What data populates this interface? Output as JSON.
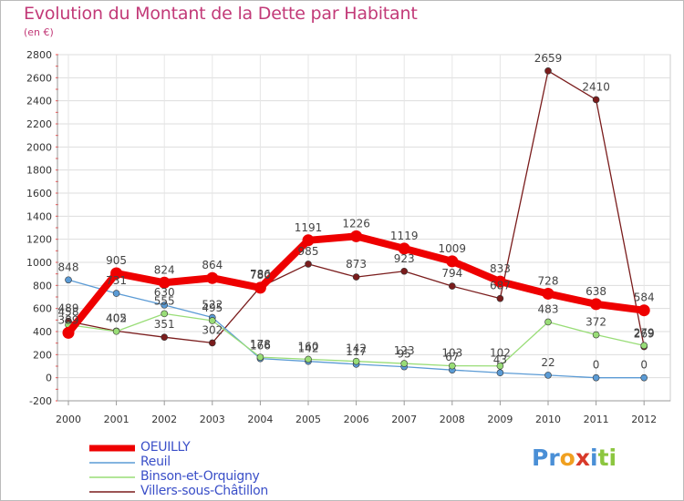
{
  "header": {
    "title": "Evolution du Montant de la Dette par Habitant",
    "subtitle": "(en €)"
  },
  "logo": {
    "parts": [
      "Pr",
      "o",
      "x",
      "i",
      "ti"
    ],
    "colors": [
      "#4a8fd6",
      "#f0a020",
      "#d83a2a",
      "#4a8fd6",
      "#8cc63f"
    ]
  },
  "chart_data": {
    "type": "line",
    "x": [
      "2000",
      "2001",
      "2002",
      "2003",
      "2004",
      "2005",
      "2006",
      "2007",
      "2008",
      "2009",
      "2010",
      "2011",
      "2012"
    ],
    "ylim": [
      -200,
      2800
    ],
    "yticks": [
      "-200",
      "0",
      "200",
      "400",
      "600",
      "800",
      "1000",
      "1200",
      "1400",
      "1600",
      "1800",
      "2000",
      "2200",
      "2400",
      "2600",
      "2800"
    ],
    "grid": true,
    "legend_placement": "bottom-left",
    "series": [
      {
        "name": "Villers-sous-Châtillon",
        "color": "#7a1c1c",
        "values": [
          489,
          405,
          351,
          302,
          786,
          985,
          873,
          923,
          794,
          687,
          2659,
          2410,
          269
        ],
        "labels": [
          "489",
          "405",
          "351",
          "302",
          "786",
          "985",
          "873",
          "923",
          "794",
          "687",
          "2659",
          "2410",
          "269"
        ]
      },
      {
        "name": "Reuil",
        "color": "#5b9bd5",
        "values": [
          848,
          731,
          630,
          522,
          166,
          142,
          117,
          95,
          67,
          43,
          22,
          0,
          0
        ],
        "labels": [
          "848",
          "731",
          "630",
          "522",
          "166",
          "142",
          "117",
          "95",
          "67",
          "43",
          "22",
          "0",
          "0"
        ]
      },
      {
        "name": "Binson-et-Orquigny",
        "color": "#99dd77",
        "values": [
          458,
          402,
          555,
          495,
          178,
          160,
          142,
          123,
          103,
          102,
          483,
          372,
          279
        ],
        "labels": [
          "458",
          "402",
          "555",
          "495",
          "178",
          "160",
          "142",
          "123",
          "103",
          "102",
          "483",
          "372",
          "279"
        ]
      },
      {
        "name": "OEUILLY",
        "color": "#ee0000",
        "values": [
          389,
          905,
          824,
          864,
          780,
          1191,
          1226,
          1119,
          1009,
          833,
          728,
          638,
          584
        ],
        "labels": [
          "389",
          "905",
          "824",
          "864",
          "780",
          "1191",
          "1226",
          "1119",
          "1009",
          "833",
          "728",
          "638",
          "584"
        ]
      }
    ],
    "legend": [
      "OEUILLY",
      "Reuil",
      "Binson-et-Orquigny",
      "Villers-sous-Châtillon"
    ],
    "legend_colors": [
      "#ee0000",
      "#5b9bd5",
      "#99dd77",
      "#7a1c1c"
    ]
  }
}
